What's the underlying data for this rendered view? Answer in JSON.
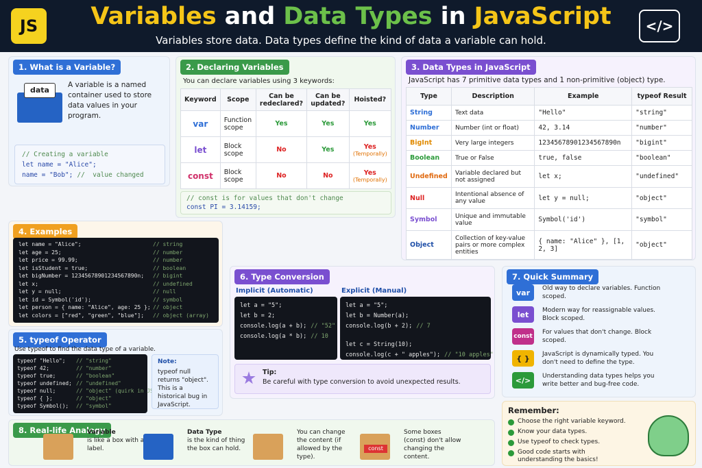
{
  "header": {
    "logo": "JS",
    "title": [
      "Variables",
      "and",
      "Data Types",
      "in",
      "JavaScript"
    ],
    "subtitle": "Variables store data. Data types define the kind of data a variable can hold.",
    "icon": "</>"
  },
  "what_is_variable": {
    "title": "1. What is a Variable?",
    "box_label": "data",
    "text": "A variable is a named container used to store data values in your program.",
    "code": [
      {
        "comment": "// Creating a variable"
      },
      {
        "code": "let name = \"Alice\";"
      },
      {
        "code": "name = \"Bob\";",
        "comment": "//  value changed"
      }
    ]
  },
  "declaring": {
    "title": "2. Declaring Variables",
    "intro": "You can declare variables using 3 keywords:",
    "header": [
      "Keyword",
      "Scope",
      "Can be redeclared?",
      "Can be updated?",
      "Hoisted?"
    ],
    "rows": [
      {
        "keyword": "var",
        "scope": "Function scope",
        "redeclared": "Yes",
        "updated": "Yes",
        "hoisted": "Yes"
      },
      {
        "keyword": "let",
        "scope": "Block scope",
        "redeclared": "No",
        "updated": "Yes",
        "hoisted": "Yes",
        "note": "(Temporally)"
      },
      {
        "keyword": "const",
        "scope": "Block scope",
        "redeclared": "No",
        "updated": "No",
        "hoisted": "Yes",
        "note": "(Temporally)"
      }
    ],
    "code": [
      {
        "comment": "// const is for values that don't change"
      },
      {
        "code": "const PI = 3.14159;"
      }
    ]
  },
  "data_types": {
    "title": "3. Data Types in JavaScript",
    "intro": "JavaScript has 7 primitive data types and 1 non-primitive (object) type.",
    "header": [
      "Type",
      "Description",
      "Example",
      "typeof Result"
    ],
    "rows": [
      [
        "String",
        "Text data",
        "\"Hello\"",
        "\"string\""
      ],
      [
        "Number",
        "Number (int or float)",
        "42, 3.14",
        "\"number\""
      ],
      [
        "BigInt",
        "Very large integers",
        "1234567890123456789​0n",
        "\"bigint\""
      ],
      [
        "Boolean",
        "True or False",
        "true, false",
        "\"boolean\""
      ],
      [
        "Undefined",
        "Variable declared but not assigned",
        "let x;",
        "\"undefined\""
      ],
      [
        "Null",
        "Intentional absence of any value",
        "let y = null;",
        "\"object\""
      ],
      [
        "Symbol",
        "Unique and immutable value",
        "Symbol('id')",
        "\"symbol\""
      ],
      [
        "Object",
        "Collection of key-value pairs or more complex entities",
        "{ name: \"Alice\" }, [1, 2, 3]",
        "\"object\""
      ]
    ]
  },
  "examples": {
    "title": "4. Examples",
    "lines": [
      {
        "code": "let name = \"Alice\";",
        "comment": "// string"
      },
      {
        "code": "let age = 25;",
        "comment": "// number"
      },
      {
        "code": "let price = 99.99;",
        "comment": "// number"
      },
      {
        "code": "let isStudent = true;",
        "comment": "// boolean"
      },
      {
        "code": "let bigNumber = 1234567890123456789​0n;",
        "comment": "// bigint"
      },
      {
        "code": "let x;",
        "comment": "// undefined"
      },
      {
        "code": "let y = null;",
        "comment": "// null"
      },
      {
        "code": "let id = Symbol('id');",
        "comment": "// symbol"
      },
      {
        "code": "let person = { name: \"Alice\", age: 25 };",
        "comment": "// object"
      },
      {
        "code": "let colors = [\"red\", \"green\", \"blue\"];",
        "comment": "// object (array)"
      }
    ]
  },
  "typeof_operator": {
    "title": "5. typeof Operator",
    "intro": "Use typeof to find the data type of a variable.",
    "lines": [
      {
        "code": "typeof \"Hello\";",
        "comment": "// \"string\""
      },
      {
        "code": "typeof 42;",
        "comment": "// \"number\""
      },
      {
        "code": "typeof true;",
        "comment": "// \"boolean\""
      },
      {
        "code": "typeof undefined;",
        "comment": "// \"undefined\""
      },
      {
        "code": "typeof null;",
        "comment": "// \"object\" (quirk in JS)"
      },
      {
        "code": "typeof { };",
        "comment": "// \"object\""
      },
      {
        "code": "typeof Symbol();",
        "comment": "// \"symbol\""
      }
    ],
    "note_title": "Note:",
    "note_text": "typeof null returns \"object\". This is a historical bug in JavaScript."
  },
  "type_conversion": {
    "title": "6. Type Conversion",
    "implicit_title": "Implicit (Automatic)",
    "implicit": [
      {
        "code": "let a = \"5\";"
      },
      {
        "code": "let b = 2;"
      },
      {
        "code": "console.log(a + b);",
        "comment": "// \"52\""
      },
      {
        "code": "console.log(a * b);",
        "comment": "// 10"
      }
    ],
    "explicit_title": "Explicit (Manual)",
    "explicit": [
      {
        "code": "let a = \"5\";"
      },
      {
        "code": "let b = Number(a);"
      },
      {
        "code": "console.log(b + 2);",
        "comment": "// 7"
      },
      {
        "code": "let c = String(10);"
      },
      {
        "code": "console.log(c + \" apples\");",
        "comment": "// \"10 apples\""
      }
    ],
    "tip_title": "Tip:",
    "tip_text": "Be careful with type conversion to avoid unexpected results."
  },
  "quick_summary": {
    "title": "7. Quick Summary",
    "items": [
      {
        "badge": "var",
        "text": "Old way to declare variables. Function scoped."
      },
      {
        "badge": "let",
        "text": "Modern way for reassignable values. Block scoped."
      },
      {
        "badge": "const",
        "text": "For values that don't change. Block scoped."
      },
      {
        "badge": "{ }",
        "text": "JavaScript is dynamically typed. You don't need to define the type."
      },
      {
        "badge": "</>",
        "text": "Understanding data types helps you write better and bug-free code."
      }
    ]
  },
  "analogy": {
    "title": "8. Real-life Analogy",
    "box_label": "const",
    "items": [
      {
        "title": "Variable",
        "text": "is like a box with a label."
      },
      {
        "title": "Data Type",
        "text": "is the kind of thing the box can hold."
      },
      {
        "text": "You can change the content (if allowed by the type)."
      },
      {
        "text": "Some boxes (const) don't allow changing the content."
      }
    ]
  },
  "remember": {
    "title": "Remember:",
    "items": [
      "Choose the right variable keyword.",
      "Know your data types.",
      "Use typeof to check types.",
      "Good code starts with understanding the basics!"
    ]
  }
}
